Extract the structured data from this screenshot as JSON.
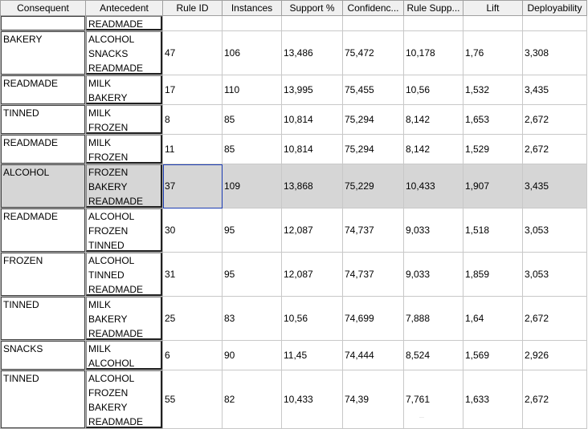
{
  "columns": [
    "Consequent",
    "Antecedent",
    "Rule ID",
    "Instances",
    "Support %",
    "Confidenc...",
    "Rule Supp...",
    "Lift",
    "Deployability"
  ],
  "rows": [
    {
      "consequent": "",
      "antecedent": [
        "READMADE"
      ],
      "rule_id": "",
      "instances": "",
      "support": "",
      "confidence": "",
      "rule_support": "",
      "lift": "",
      "deployability": ""
    },
    {
      "consequent": "BAKERY",
      "antecedent": [
        "ALCOHOL",
        "SNACKS",
        "READMADE"
      ],
      "rule_id": "47",
      "instances": "106",
      "support": "13,486",
      "confidence": "75,472",
      "rule_support": "10,178",
      "lift": "1,76",
      "deployability": "3,308"
    },
    {
      "consequent": "READMADE",
      "antecedent": [
        "MILK",
        "BAKERY"
      ],
      "rule_id": "17",
      "instances": "110",
      "support": "13,995",
      "confidence": "75,455",
      "rule_support": "10,56",
      "lift": "1,532",
      "deployability": "3,435"
    },
    {
      "consequent": "TINNED",
      "antecedent": [
        "MILK",
        "FROZEN"
      ],
      "rule_id": "8",
      "instances": "85",
      "support": "10,814",
      "confidence": "75,294",
      "rule_support": "8,142",
      "lift": "1,653",
      "deployability": "2,672"
    },
    {
      "consequent": "READMADE",
      "antecedent": [
        "MILK",
        "FROZEN"
      ],
      "rule_id": "11",
      "instances": "85",
      "support": "10,814",
      "confidence": "75,294",
      "rule_support": "8,142",
      "lift": "1,529",
      "deployability": "2,672"
    },
    {
      "consequent": "ALCOHOL",
      "antecedent": [
        "FROZEN",
        "BAKERY",
        "READMADE"
      ],
      "rule_id": "37",
      "instances": "109",
      "support": "13,868",
      "confidence": "75,229",
      "rule_support": "10,433",
      "lift": "1,907",
      "deployability": "3,435",
      "selected": true
    },
    {
      "consequent": "READMADE",
      "antecedent": [
        "ALCOHOL",
        "FROZEN",
        "TINNED"
      ],
      "rule_id": "30",
      "instances": "95",
      "support": "12,087",
      "confidence": "74,737",
      "rule_support": "9,033",
      "lift": "1,518",
      "deployability": "3,053"
    },
    {
      "consequent": "FROZEN",
      "antecedent": [
        "ALCOHOL",
        "TINNED",
        "READMADE"
      ],
      "rule_id": "31",
      "instances": "95",
      "support": "12,087",
      "confidence": "74,737",
      "rule_support": "9,033",
      "lift": "1,859",
      "deployability": "3,053"
    },
    {
      "consequent": "TINNED",
      "antecedent": [
        "MILK",
        "BAKERY",
        "READMADE"
      ],
      "rule_id": "25",
      "instances": "83",
      "support": "10,56",
      "confidence": "74,699",
      "rule_support": "7,888",
      "lift": "1,64",
      "deployability": "2,672"
    },
    {
      "consequent": "SNACKS",
      "antecedent": [
        "MILK",
        "ALCOHOL"
      ],
      "rule_id": "6",
      "instances": "90",
      "support": "11,45",
      "confidence": "74,444",
      "rule_support": "8,524",
      "lift": "1,569",
      "deployability": "2,926"
    },
    {
      "consequent": "TINNED",
      "antecedent": [
        "ALCOHOL",
        "FROZEN",
        "BAKERY",
        "READMADE"
      ],
      "rule_id": "55",
      "instances": "82",
      "support": "10,433",
      "confidence": "74,39",
      "rule_support": "7,761",
      "lift": "1,633",
      "deployability": "2,672"
    }
  ],
  "colors": {
    "selected_row": "#d6d6d6",
    "focus_outline": "#1a3bb3"
  }
}
